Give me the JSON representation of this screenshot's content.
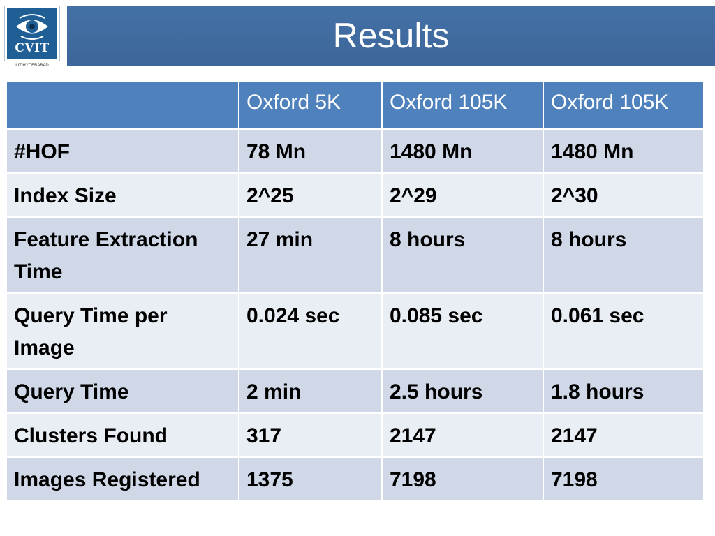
{
  "slide": {
    "title": "Results",
    "logo": {
      "text": "CVIT",
      "caption": "IIIT HYDERABAD"
    }
  },
  "table": {
    "headers": [
      "",
      "Oxford 5K",
      "Oxford 105K",
      "Oxford 105K"
    ],
    "rows": [
      {
        "label": "#HOF",
        "values": [
          "78 Mn",
          "1480 Mn",
          "1480 Mn"
        ]
      },
      {
        "label": "Index Size",
        "values": [
          "2^25",
          "2^29",
          "2^30"
        ]
      },
      {
        "label": "Feature Extraction Time",
        "values": [
          "27 min",
          "8 hours",
          "8 hours"
        ]
      },
      {
        "label": "Query Time per Image",
        "values": [
          "0.024 sec",
          "0.085 sec",
          "0.061 sec"
        ]
      },
      {
        "label": "Query Time",
        "values": [
          "2 min",
          "2.5 hours",
          "1.8 hours"
        ]
      },
      {
        "label": "Clusters Found",
        "values": [
          "317",
          "2147",
          "2147"
        ]
      },
      {
        "label": "Images Registered",
        "values": [
          "1375",
          "7198",
          "7198"
        ]
      }
    ]
  },
  "colors": {
    "title_bar": "#3d669a",
    "header_row": "#4f81bd",
    "row_dark": "#d0d8e8",
    "row_light": "#e9edf4",
    "logo_bg": "#1f5f96"
  },
  "icons": {
    "logo": "eye-logo-icon"
  }
}
